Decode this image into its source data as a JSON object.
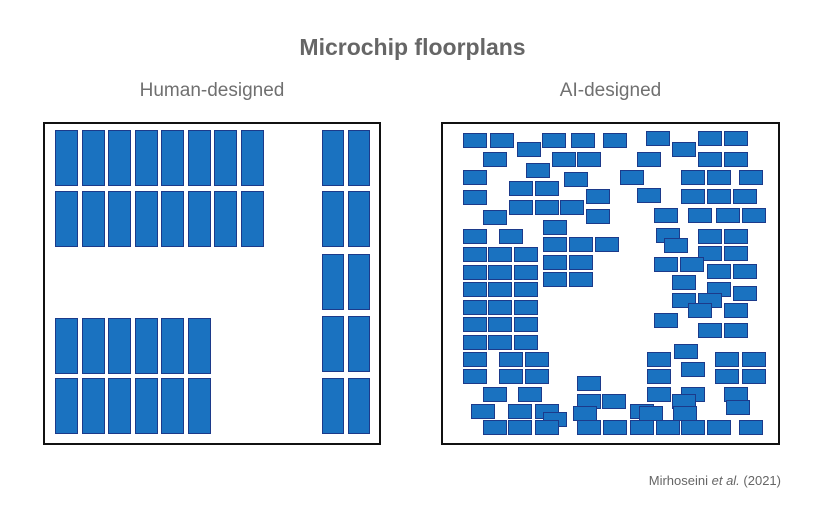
{
  "figure": {
    "title": "Microchip floorplans",
    "panels": [
      {
        "id": "human",
        "label": "Human-designed"
      },
      {
        "id": "ai",
        "label": "AI-designed"
      }
    ],
    "credit": {
      "author": "Mirhoseini ",
      "etal": "et al.",
      "year": " (2021)"
    }
  },
  "colors": {
    "block_fill": "#1a72c0",
    "block_stroke": "#1c3a8a",
    "frame": "#111111"
  }
}
